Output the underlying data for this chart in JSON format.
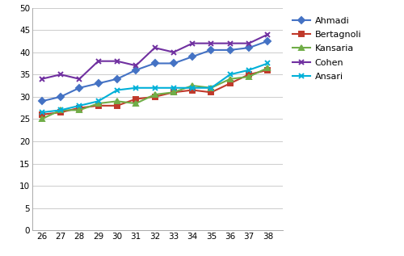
{
  "x": [
    26,
    27,
    28,
    29,
    30,
    31,
    32,
    33,
    34,
    35,
    36,
    37,
    38
  ],
  "Ahmadi": [
    29,
    30,
    32,
    33,
    34,
    36,
    37.5,
    37.5,
    39,
    40.5,
    40.5,
    41,
    42.5
  ],
  "Bertagnoli": [
    26,
    26.5,
    27.5,
    28,
    28,
    29.5,
    30,
    31,
    31.5,
    31,
    33,
    35,
    36
  ],
  "Kansaria": [
    25,
    27,
    27,
    28.5,
    29,
    28.5,
    30.5,
    31,
    32.5,
    32,
    34,
    34.5,
    36.5
  ],
  "Cohen": [
    34,
    35,
    34,
    38,
    38,
    37,
    41,
    40,
    42,
    42,
    42,
    42,
    44
  ],
  "Ansari": [
    26.5,
    27,
    28,
    29,
    31.5,
    32,
    32,
    32,
    32,
    32,
    35,
    36,
    37.5
  ],
  "colors": {
    "Ahmadi": "#4472C4",
    "Bertagnoli": "#C0392B",
    "Kansaria": "#70AD47",
    "Cohen": "#7030A0",
    "Ansari": "#00B0D8"
  },
  "markers": {
    "Ahmadi": "D",
    "Bertagnoli": "s",
    "Kansaria": "^",
    "Cohen": "x",
    "Ansari": "x"
  },
  "marker_sizes": {
    "Ahmadi": 4,
    "Bertagnoli": 4,
    "Kansaria": 4,
    "Cohen": 5,
    "Ansari": 5
  },
  "linewidths": {
    "Ahmadi": 1.5,
    "Bertagnoli": 1.5,
    "Kansaria": 1.5,
    "Cohen": 1.5,
    "Ansari": 1.5
  },
  "ylim": [
    0,
    50
  ],
  "yticks": [
    0,
    5,
    10,
    15,
    20,
    25,
    30,
    35,
    40,
    45,
    50
  ],
  "xlim": [
    25.5,
    38.8
  ],
  "xticks": [
    26,
    27,
    28,
    29,
    30,
    31,
    32,
    33,
    34,
    35,
    36,
    37,
    38
  ],
  "background_color": "#ffffff",
  "grid_color": "#cccccc",
  "tick_fontsize": 7.5,
  "legend_fontsize": 8
}
